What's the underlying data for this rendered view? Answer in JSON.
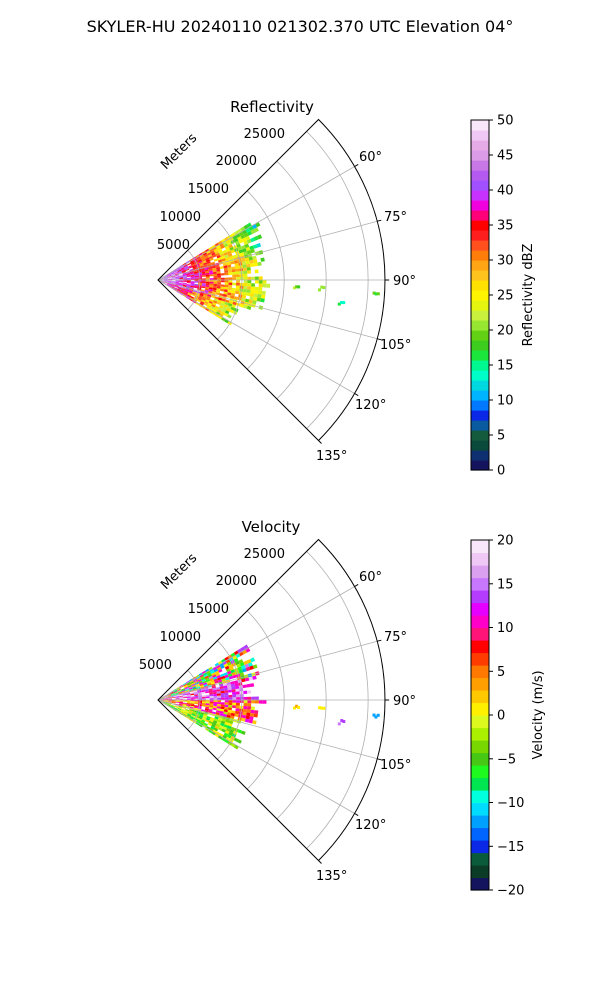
{
  "figure": {
    "suptitle": "SKYLER-HU  20240110  021302.370 UTC Elevation 04°"
  },
  "colors": {
    "reflectivity_scale": [
      "#14145e",
      "#0f3070",
      "#0a4a3c",
      "#145a3c",
      "#0a5aa0",
      "#0a28e6",
      "#0078ff",
      "#00b4ff",
      "#00d8e0",
      "#00ffc8",
      "#00f890",
      "#1ae63c",
      "#3ccd1e",
      "#64d214",
      "#96e632",
      "#c8f03c",
      "#e6f50f",
      "#fff500",
      "#ffe100",
      "#ffc31e",
      "#ffa514",
      "#ff7d0a",
      "#ff501e",
      "#ff1e1e",
      "#ff0000",
      "#ff0078",
      "#f000dc",
      "#c832ff",
      "#a050ff",
      "#b45af0",
      "#c878e6",
      "#dc9be6",
      "#e6aae6",
      "#f0c8f5",
      "#f8e6fa"
    ],
    "velocity_scale": [
      "#14145e",
      "#0a3c28",
      "#0a5a3c",
      "#0a28e6",
      "#0064ff",
      "#00a0ff",
      "#00dcff",
      "#00ffdc",
      "#00e650",
      "#1efa1e",
      "#46c814",
      "#78d700",
      "#aaf000",
      "#dcfa1e",
      "#fff000",
      "#ffc800",
      "#ffa000",
      "#ff7800",
      "#ff3c00",
      "#ff0000",
      "#ff1478",
      "#ff00c8",
      "#e600ff",
      "#b43cff",
      "#c878ff",
      "#dca0f0",
      "#f0c8f5",
      "#f8e6fa"
    ]
  },
  "panels": [
    {
      "id": "reflectivity",
      "title": "Reflectivity",
      "range_unit_label": "Meters",
      "range_tick_labels": [
        "5000",
        "10000",
        "15000",
        "20000",
        "25000"
      ],
      "azimuth_tick_labels": [
        "60°",
        "75°",
        "90°",
        "105°",
        "120°",
        "135°"
      ],
      "colorbar_label": "Reflectivity dBZ",
      "colorbar_tick_labels": [
        "0",
        "5",
        "10",
        "15",
        "20",
        "25",
        "30",
        "35",
        "40",
        "45",
        "50"
      ]
    },
    {
      "id": "velocity",
      "title": "Velocity",
      "range_unit_label": "Meters",
      "range_tick_labels": [
        "5000",
        "10000",
        "15000",
        "20000",
        "25000"
      ],
      "azimuth_tick_labels": [
        "60°",
        "75°",
        "90°",
        "105°",
        "120°",
        "135°"
      ],
      "colorbar_label": "Velocity (m/s)",
      "colorbar_tick_labels": [
        "−20",
        "−15",
        "−10",
        "−5",
        "0",
        "5",
        "10",
        "15",
        "20"
      ]
    }
  ],
  "chart_data": [
    {
      "type": "heatmap",
      "title": "Reflectivity",
      "projection": "polar sector",
      "azimuth_range_deg": [
        45,
        135
      ],
      "azimuth_ticks_deg": [
        60,
        75,
        90,
        105,
        120,
        135
      ],
      "range_ticks_m": [
        5000,
        10000,
        15000,
        20000,
        25000
      ],
      "range_max_m": 27000,
      "colorbar": {
        "label": "Reflectivity dBZ",
        "range": [
          0,
          50
        ],
        "ticks": [
          0,
          5,
          10,
          15,
          20,
          25,
          30,
          35,
          40,
          45,
          50
        ]
      },
      "echo_regions": [
        {
          "azimuth_deg": [
            58,
            74
          ],
          "range_m": [
            0,
            13500
          ],
          "dbz": [
            15,
            45
          ]
        },
        {
          "azimuth_deg": [
            74,
            108
          ],
          "range_m": [
            0,
            13000
          ],
          "dbz": [
            20,
            45
          ]
        },
        {
          "azimuth_deg": [
            108,
            122
          ],
          "range_m": [
            0,
            10000
          ],
          "dbz": [
            20,
            42
          ]
        }
      ],
      "isolated_echoes": [
        {
          "azimuth_deg": 93,
          "range_m": 16500,
          "dbz": 20
        },
        {
          "azimuth_deg": 93,
          "range_m": 19500,
          "dbz": 20
        },
        {
          "azimuth_deg": 97,
          "range_m": 22000,
          "dbz": 15
        },
        {
          "azimuth_deg": 94,
          "range_m": 26000,
          "dbz": 18
        }
      ]
    },
    {
      "type": "heatmap",
      "title": "Velocity",
      "projection": "polar sector",
      "azimuth_range_deg": [
        45,
        135
      ],
      "azimuth_ticks_deg": [
        60,
        75,
        90,
        105,
        120,
        135
      ],
      "range_ticks_m": [
        5000,
        10000,
        15000,
        20000,
        25000
      ],
      "range_max_m": 27000,
      "colorbar": {
        "label": "Velocity (m/s)",
        "range": [
          -20,
          20
        ],
        "ticks": [
          -20,
          -15,
          -10,
          -5,
          0,
          5,
          10,
          15,
          20
        ]
      },
      "echo_regions": [
        {
          "azimuth_deg": [
            58,
            76
          ],
          "range_m": [
            0,
            12500
          ],
          "velocity_mps": [
            -12,
            15
          ]
        },
        {
          "azimuth_deg": [
            76,
            90
          ],
          "range_m": [
            0,
            12000
          ],
          "velocity_mps": [
            8,
            18
          ]
        },
        {
          "azimuth_deg": [
            90,
            104
          ],
          "range_m": [
            0,
            13000
          ],
          "velocity_mps": [
            -2,
            12
          ]
        },
        {
          "azimuth_deg": [
            104,
            122
          ],
          "range_m": [
            0,
            11000
          ],
          "velocity_mps": [
            -8,
            2
          ]
        }
      ],
      "isolated_echoes": [
        {
          "azimuth_deg": 93,
          "range_m": 16500,
          "velocity_mps": 2
        },
        {
          "azimuth_deg": 93,
          "range_m": 19500,
          "velocity_mps": 2
        },
        {
          "azimuth_deg": 97,
          "range_m": 22000,
          "velocity_mps": 15
        },
        {
          "azimuth_deg": 94,
          "range_m": 26000,
          "velocity_mps": -12
        }
      ]
    }
  ]
}
